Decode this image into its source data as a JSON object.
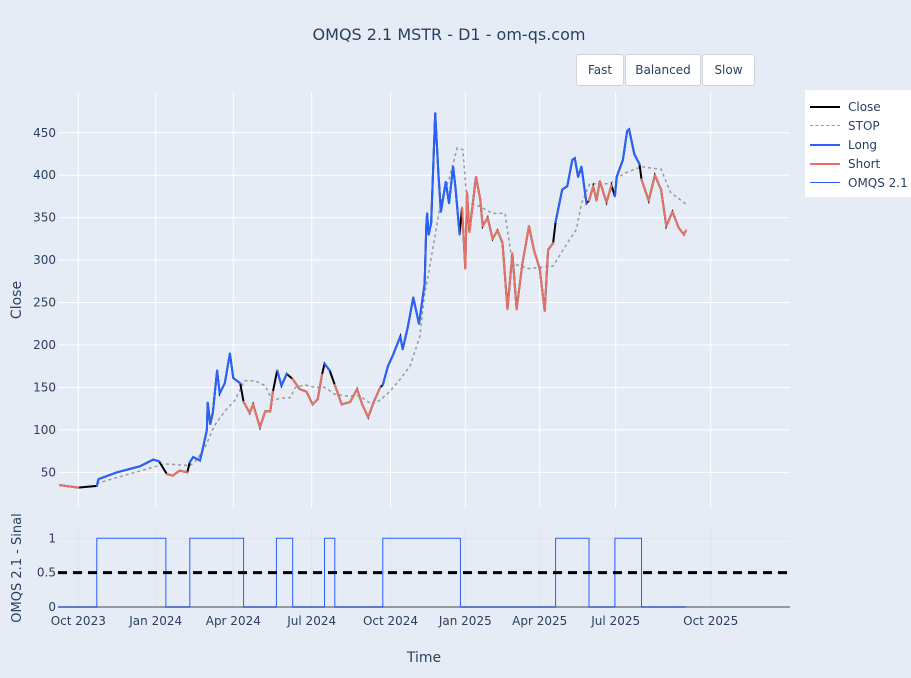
{
  "title": "OMQS 2.1 MSTR - D1 - om-qs.com",
  "buttons": [
    {
      "label": "Fast"
    },
    {
      "label": "Balanced"
    },
    {
      "label": "Slow"
    }
  ],
  "legend": [
    {
      "label": "Close",
      "color": "#000000",
      "style": "solid"
    },
    {
      "label": "STOP",
      "color": "#999999",
      "style": "dotted"
    },
    {
      "label": "Long",
      "color": "#2962ff",
      "style": "solid"
    },
    {
      "label": "Short",
      "color": "#e57368",
      "style": "solid"
    },
    {
      "label": "OMQS 2.1",
      "color": "#2b5cff",
      "style": "thin"
    }
  ],
  "chart_data": [
    {
      "type": "line",
      "panel": "price",
      "title": "OMQS 2.1 MSTR - D1 - om-qs.com",
      "ylabel": "Close",
      "ylim": [
        8,
        498
      ],
      "y_ticks": [
        50,
        100,
        150,
        200,
        250,
        300,
        350,
        400,
        450
      ],
      "grid": true,
      "legend_position": "right",
      "colors": {
        "close": "#000000",
        "stop": "#999999",
        "long": "#2962ff",
        "short": "#e57368"
      },
      "close": [
        [
          "2023-09-09",
          35
        ],
        [
          "2023-10-01",
          32
        ],
        [
          "2023-10-23",
          34
        ],
        [
          "2023-10-25",
          42
        ],
        [
          "2023-11-16",
          50
        ],
        [
          "2023-12-05",
          55
        ],
        [
          "2023-12-13",
          57
        ],
        [
          "2023-12-29",
          65
        ],
        [
          "2024-01-05",
          63
        ],
        [
          "2024-01-14",
          48
        ],
        [
          "2024-01-21",
          46
        ],
        [
          "2024-01-29",
          52
        ],
        [
          "2024-02-07",
          50
        ],
        [
          "2024-02-10",
          62
        ],
        [
          "2024-02-14",
          68
        ],
        [
          "2024-02-22",
          64
        ],
        [
          "2024-02-25",
          77
        ],
        [
          "2024-03-01",
          100
        ],
        [
          "2024-03-02",
          132
        ],
        [
          "2024-03-05",
          107
        ],
        [
          "2024-03-08",
          120
        ],
        [
          "2024-03-13",
          170
        ],
        [
          "2024-03-16",
          143
        ],
        [
          "2024-03-22",
          155
        ],
        [
          "2024-03-28",
          190
        ],
        [
          "2024-04-01",
          161
        ],
        [
          "2024-04-09",
          155
        ],
        [
          "2024-04-13",
          133
        ],
        [
          "2024-04-20",
          120
        ],
        [
          "2024-04-24",
          130
        ],
        [
          "2024-05-02",
          103
        ],
        [
          "2024-05-08",
          122
        ],
        [
          "2024-05-14",
          122
        ],
        [
          "2024-05-17",
          145
        ],
        [
          "2024-05-22",
          170
        ],
        [
          "2024-05-27",
          152
        ],
        [
          "2024-06-02",
          166
        ],
        [
          "2024-06-09",
          160
        ],
        [
          "2024-06-17",
          148
        ],
        [
          "2024-06-25",
          145
        ],
        [
          "2024-07-02",
          130
        ],
        [
          "2024-07-08",
          136
        ],
        [
          "2024-07-13",
          165
        ],
        [
          "2024-07-16",
          178
        ],
        [
          "2024-07-22",
          170
        ],
        [
          "2024-07-28",
          153
        ],
        [
          "2024-08-05",
          130
        ],
        [
          "2024-08-15",
          133
        ],
        [
          "2024-08-23",
          148
        ],
        [
          "2024-08-29",
          130
        ],
        [
          "2024-09-05",
          115
        ],
        [
          "2024-09-11",
          132
        ],
        [
          "2024-09-19",
          150
        ],
        [
          "2024-09-22",
          153
        ],
        [
          "2024-09-28",
          175
        ],
        [
          "2024-10-04",
          188
        ],
        [
          "2024-10-13",
          210
        ],
        [
          "2024-10-16",
          195
        ],
        [
          "2024-10-22",
          220
        ],
        [
          "2024-10-29",
          256
        ],
        [
          "2024-11-05",
          225
        ],
        [
          "2024-11-12",
          272
        ],
        [
          "2024-11-14",
          340
        ],
        [
          "2024-11-15",
          355
        ],
        [
          "2024-11-17",
          330
        ],
        [
          "2024-11-20",
          344
        ],
        [
          "2024-11-25",
          473
        ],
        [
          "2024-11-29",
          400
        ],
        [
          "2024-12-02",
          357
        ],
        [
          "2024-12-08",
          392
        ],
        [
          "2024-12-12",
          367
        ],
        [
          "2024-12-17",
          410
        ],
        [
          "2024-12-20",
          385
        ],
        [
          "2024-12-25",
          330
        ],
        [
          "2024-12-28",
          362
        ],
        [
          "2025-01-01",
          290
        ],
        [
          "2025-01-03",
          380
        ],
        [
          "2025-01-06",
          333
        ],
        [
          "2025-01-14",
          398
        ],
        [
          "2025-01-19",
          372
        ],
        [
          "2025-01-22",
          340
        ],
        [
          "2025-01-28",
          350
        ],
        [
          "2025-02-03",
          325
        ],
        [
          "2025-02-09",
          335
        ],
        [
          "2025-02-15",
          320
        ],
        [
          "2025-02-21",
          242
        ],
        [
          "2025-02-27",
          308
        ],
        [
          "2025-03-04",
          242
        ],
        [
          "2025-03-11",
          295
        ],
        [
          "2025-03-19",
          340
        ],
        [
          "2025-03-25",
          312
        ],
        [
          "2025-04-01",
          290
        ],
        [
          "2025-04-07",
          240
        ],
        [
          "2025-04-11",
          312
        ],
        [
          "2025-04-17",
          320
        ],
        [
          "2025-04-20",
          345
        ],
        [
          "2025-04-28",
          383
        ],
        [
          "2025-05-04",
          387
        ],
        [
          "2025-05-10",
          418
        ],
        [
          "2025-05-13",
          420
        ],
        [
          "2025-05-17",
          398
        ],
        [
          "2025-05-21",
          410
        ],
        [
          "2025-05-27",
          367
        ],
        [
          "2025-05-30",
          370
        ],
        [
          "2025-06-04",
          387
        ],
        [
          "2025-06-08",
          370
        ],
        [
          "2025-06-12",
          393
        ],
        [
          "2025-06-20",
          368
        ],
        [
          "2025-06-26",
          388
        ],
        [
          "2025-06-30",
          375
        ],
        [
          "2025-07-02",
          398
        ],
        [
          "2025-07-08",
          418
        ],
        [
          "2025-07-12",
          452
        ],
        [
          "2025-07-14",
          454
        ],
        [
          "2025-07-19",
          425
        ],
        [
          "2025-07-24",
          413
        ],
        [
          "2025-07-26",
          395
        ],
        [
          "2025-08-02",
          370
        ],
        [
          "2025-08-08",
          400
        ],
        [
          "2025-08-14",
          383
        ],
        [
          "2025-08-19",
          340
        ],
        [
          "2025-08-25",
          357
        ],
        [
          "2025-08-31",
          338
        ],
        [
          "2025-09-05",
          330
        ],
        [
          "2025-09-07",
          335
        ]
      ],
      "stop": [
        [
          "2023-10-23",
          37
        ],
        [
          "2023-11-20",
          45
        ],
        [
          "2023-12-25",
          55
        ],
        [
          "2024-01-12",
          60
        ],
        [
          "2024-02-10",
          58
        ],
        [
          "2024-02-16",
          62
        ],
        [
          "2024-02-28",
          80
        ],
        [
          "2024-03-10",
          105
        ],
        [
          "2024-03-22",
          122
        ],
        [
          "2024-04-03",
          135
        ],
        [
          "2024-04-14",
          158
        ],
        [
          "2024-04-26",
          158
        ],
        [
          "2024-05-08",
          152
        ],
        [
          "2024-05-16",
          135
        ],
        [
          "2024-05-25",
          137
        ],
        [
          "2024-06-06",
          138
        ],
        [
          "2024-06-12",
          150
        ],
        [
          "2024-06-23",
          153
        ],
        [
          "2024-07-05",
          150
        ],
        [
          "2024-07-16",
          150
        ],
        [
          "2024-07-28",
          142
        ],
        [
          "2024-08-09",
          140
        ],
        [
          "2024-08-26",
          140
        ],
        [
          "2024-09-09",
          130
        ],
        [
          "2024-09-19",
          135
        ],
        [
          "2024-09-30",
          145
        ],
        [
          "2024-10-13",
          160
        ],
        [
          "2024-10-25",
          175
        ],
        [
          "2024-11-06",
          210
        ],
        [
          "2024-11-12",
          260
        ],
        [
          "2024-11-16",
          280
        ],
        [
          "2024-11-25",
          330
        ],
        [
          "2024-12-02",
          370
        ],
        [
          "2024-12-12",
          395
        ],
        [
          "2024-12-22",
          432
        ],
        [
          "2024-12-29",
          430
        ],
        [
          "2025-01-03",
          368
        ],
        [
          "2025-01-19",
          363
        ],
        [
          "2025-02-03",
          355
        ],
        [
          "2025-02-18",
          355
        ],
        [
          "2025-02-27",
          296
        ],
        [
          "2025-03-19",
          290
        ],
        [
          "2025-04-17",
          293
        ],
        [
          "2025-05-04",
          320
        ],
        [
          "2025-05-15",
          336
        ],
        [
          "2025-05-21",
          367
        ],
        [
          "2025-05-31",
          390
        ],
        [
          "2025-06-24",
          390
        ],
        [
          "2025-07-09",
          402
        ],
        [
          "2025-07-26",
          410
        ],
        [
          "2025-08-14",
          407
        ],
        [
          "2025-08-23",
          380
        ],
        [
          "2025-09-07",
          366
        ]
      ]
    },
    {
      "type": "line",
      "panel": "signal",
      "ylabel": "OMQS 2.1 - Sinal",
      "xlabel": "Time",
      "ylim": [
        0,
        1.15
      ],
      "y_ticks": [
        0,
        0.5,
        1
      ],
      "y_tick_labels": [
        "0",
        "0.5",
        "1"
      ],
      "threshold": 0.5,
      "x_ticks": [
        "2023-10-01",
        "2024-01-01",
        "2024-04-01",
        "2024-07-01",
        "2024-10-01",
        "2025-01-01",
        "2025-04-01",
        "2025-07-01",
        "2025-10-01"
      ],
      "x_tick_labels": [
        "Oct 2023",
        "Jan 2024",
        "Apr 2024",
        "Jul 2024",
        "Oct 2024",
        "Jan 2025",
        "Apr 2025",
        "Jul 2025",
        "Oct 2025"
      ],
      "x_range": [
        "2023-09-08",
        "2026-01-15"
      ],
      "signal_changes": [
        [
          "2023-09-07",
          0
        ],
        [
          "2023-10-23",
          1
        ],
        [
          "2024-01-13",
          0
        ],
        [
          "2024-02-10",
          1
        ],
        [
          "2024-04-13",
          0
        ],
        [
          "2024-05-21",
          1
        ],
        [
          "2024-06-09",
          0
        ],
        [
          "2024-07-16",
          1
        ],
        [
          "2024-07-28",
          0
        ],
        [
          "2024-09-22",
          1
        ],
        [
          "2024-12-26",
          0
        ],
        [
          "2025-04-20",
          1
        ],
        [
          "2025-05-30",
          0
        ],
        [
          "2025-06-30",
          1
        ],
        [
          "2025-07-26",
          0
        ],
        [
          "2025-09-07",
          0
        ]
      ],
      "color": "#2b5cff"
    }
  ]
}
